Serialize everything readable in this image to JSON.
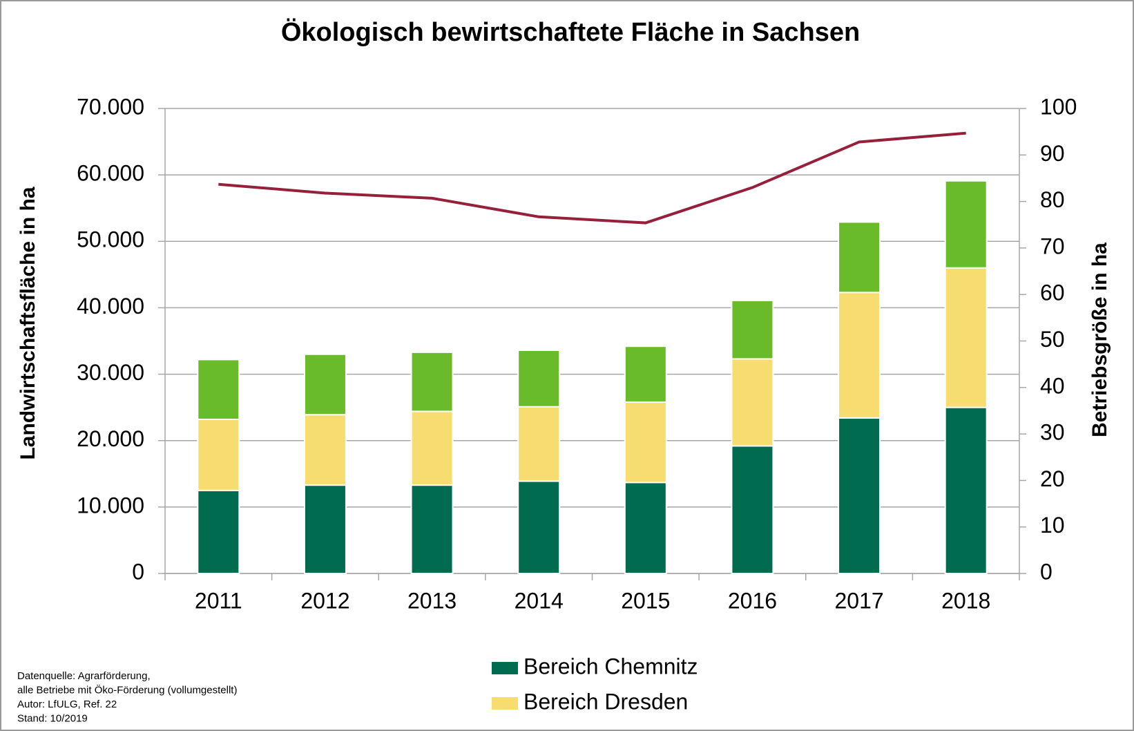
{
  "chart_data": {
    "type": "bar",
    "title": "Ökologisch bewirtschaftete Fläche in Sachsen",
    "y_label": "Landwirtschaftsfläche in ha",
    "y2_label": "Betriebsgröße in ha",
    "categories": [
      "2011",
      "2012",
      "2013",
      "2014",
      "2015",
      "2016",
      "2017",
      "2018"
    ],
    "stacked": true,
    "series": [
      {
        "name": "Bereich Chemnitz",
        "color": "#006b4f",
        "values": [
          12500,
          13300,
          13300,
          13900,
          13700,
          19200,
          23400,
          25000
        ]
      },
      {
        "name": "Bereich Dresden",
        "color": "#f7dc6f",
        "values": [
          10700,
          10600,
          11100,
          11200,
          12100,
          13100,
          18900,
          21000
        ]
      },
      {
        "color": "#6abb2a",
        "values": [
          9000,
          9100,
          8900,
          8500,
          8400,
          8800,
          10600,
          13100
        ]
      },
      {
        "type": "line",
        "axis": "y2",
        "color": "#96203a",
        "values": [
          83.7,
          81.8,
          80.7,
          76.7,
          75.4,
          83.0,
          92.8,
          94.7
        ]
      }
    ],
    "ylim": [
      0,
      70000
    ],
    "yticks": [
      0,
      {
        "value": 10000,
        "label": "10.000"
      },
      {
        "value": 20000,
        "label": "20.000"
      },
      {
        "value": 30000,
        "label": "30.000"
      },
      {
        "value": 40000,
        "label": "40.000"
      },
      {
        "value": 50000,
        "label": "50.000"
      },
      {
        "value": 60000,
        "label": "60.000"
      },
      {
        "value": 70000,
        "label": "70.000"
      }
    ],
    "y2lim": [
      0,
      100
    ],
    "y2ticks": [
      0,
      10,
      20,
      30,
      40,
      50,
      60,
      70,
      80,
      90,
      100
    ],
    "grid": true
  },
  "footnote": [
    "Datenquelle:  Agrarförderung,",
    "alle Betriebe mit Öko-Förderung (vollumgestellt)",
    "Autor: LfULG,  Ref. 22",
    "Stand:  10/2019"
  ]
}
